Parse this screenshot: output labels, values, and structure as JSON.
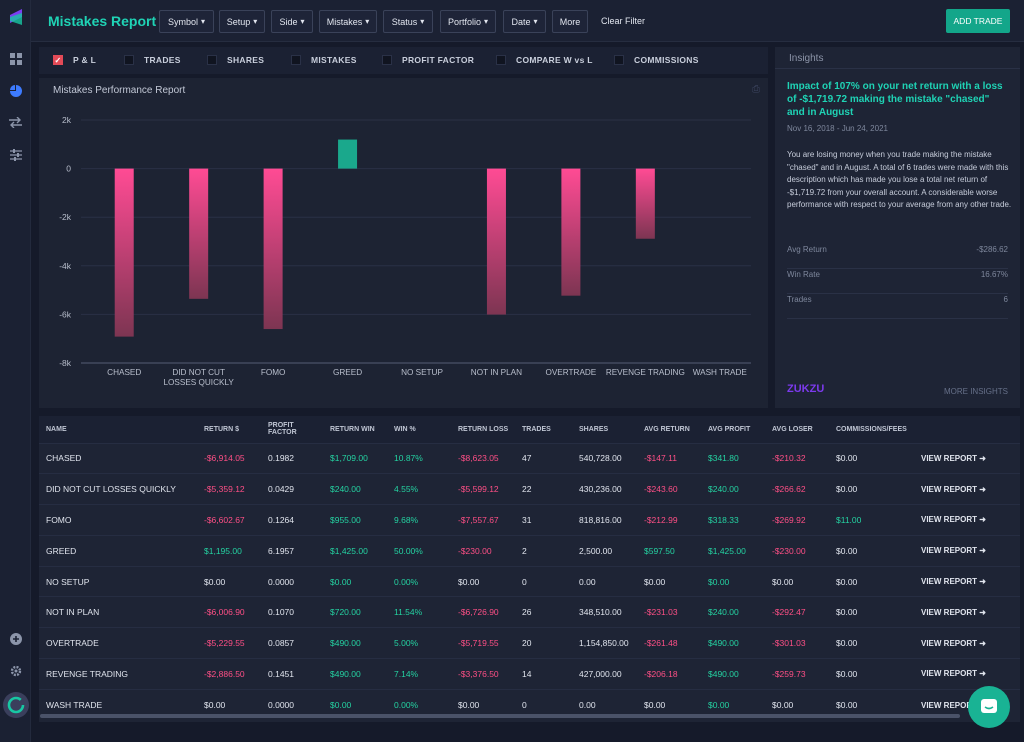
{
  "header": {
    "title": "Mistakes Report",
    "filters": [
      "Symbol",
      "Setup",
      "Side",
      "Mistakes",
      "Status",
      "Portfolio",
      "Date"
    ],
    "more": "More",
    "clear": "Clear Filter",
    "add_trade": "ADD TRADE"
  },
  "sidebar": {
    "icons": [
      "dashboard-icon",
      "pie-chart-icon",
      "transfer-icon",
      "sliders-icon",
      "add-circle-icon",
      "settings-icon",
      "profile-ring-icon"
    ]
  },
  "metrics": [
    {
      "label": "P & L",
      "checked": true
    },
    {
      "label": "TRADES",
      "checked": false
    },
    {
      "label": "SHARES",
      "checked": false
    },
    {
      "label": "MISTAKES",
      "checked": false
    },
    {
      "label": "PROFIT FACTOR",
      "checked": false
    },
    {
      "label": "COMPARE W vs L",
      "checked": false
    },
    {
      "label": "COMMISSIONS",
      "checked": false
    }
  ],
  "chart_data": {
    "type": "bar",
    "title": "Mistakes Performance Report",
    "categories": [
      "CHASED",
      "DID NOT CUT LOSSES QUICKLY",
      "FOMO",
      "GREED",
      "NO SETUP",
      "NOT IN PLAN",
      "OVERTRADE",
      "REVENGE TRADING",
      "WASH TRADE"
    ],
    "category_lines": [
      [
        "CHASED"
      ],
      [
        "DID NOT CUT",
        "LOSSES QUICKLY"
      ],
      [
        "FOMO"
      ],
      [
        "GREED"
      ],
      [
        "NO SETUP"
      ],
      [
        "NOT IN PLAN"
      ],
      [
        "OVERTRADE"
      ],
      [
        "REVENGE TRADING"
      ],
      [
        "WASH TRADE"
      ]
    ],
    "values": [
      -6914.05,
      -5359.12,
      -6602.67,
      1195.0,
      0,
      -6006.9,
      -5229.55,
      -2886.5,
      0
    ],
    "ylim": [
      -8000,
      2000
    ],
    "yticks": [
      2000,
      0,
      -2000,
      -4000,
      -6000,
      -8000
    ],
    "ytick_labels": [
      "2k",
      "0",
      "-2k",
      "-4k",
      "-6k",
      "-8k"
    ],
    "grid": true,
    "colors": {
      "negative_top": "#ff4b94",
      "negative_bottom": "#7d3552",
      "positive": "#1aa88c"
    }
  },
  "insights": {
    "title": "Insights",
    "headline": "Impact of 107% on your net return with a loss of -$1,719.72 making the mistake \"chased\" and in August",
    "date": "Nov 16, 2018 - Jun 24, 2021",
    "body": "You are losing money when you trade making the mistake \"chased\" and in August. A total of 6 trades were made with this description which has made you lose a total net return of -$1,719.72 from your overall account. A considerable worse performance with respect to your average from any other trade.",
    "stats": [
      {
        "label": "Avg Return",
        "value": "-$286.62"
      },
      {
        "label": "Win Rate",
        "value": "16.67%"
      },
      {
        "label": "Trades",
        "value": "6"
      }
    ],
    "logo": "ZUKZU",
    "more": "MORE INSIGHTS"
  },
  "table": {
    "columns": [
      "NAME",
      "RETURN $",
      "PROFIT FACTOR",
      "RETURN WIN",
      "WIN %",
      "RETURN LOSS",
      "TRADES",
      "SHARES",
      "AVG RETURN",
      "AVG PROFIT",
      "AVG LOSER",
      "COMMISSIONS/FEES",
      ""
    ],
    "view_label": "VIEW REPORT",
    "rows": [
      [
        "CHASED",
        "-$6,914.05",
        "0.1982",
        "$1,709.00",
        "10.87%",
        "-$8,623.05",
        "47",
        "540,728.00",
        "-$147.11",
        "$341.80",
        "-$210.32",
        "$0.00"
      ],
      [
        "DID NOT CUT LOSSES QUICKLY",
        "-$5,359.12",
        "0.0429",
        "$240.00",
        "4.55%",
        "-$5,599.12",
        "22",
        "430,236.00",
        "-$243.60",
        "$240.00",
        "-$266.62",
        "$0.00"
      ],
      [
        "FOMO",
        "-$6,602.67",
        "0.1264",
        "$955.00",
        "9.68%",
        "-$7,557.67",
        "31",
        "818,816.00",
        "-$212.99",
        "$318.33",
        "-$269.92",
        "$11.00"
      ],
      [
        "GREED",
        "$1,195.00",
        "6.1957",
        "$1,425.00",
        "50.00%",
        "-$230.00",
        "2",
        "2,500.00",
        "$597.50",
        "$1,425.00",
        "-$230.00",
        "$0.00"
      ],
      [
        "NO SETUP",
        "$0.00",
        "0.0000",
        "$0.00",
        "0.00%",
        "$0.00",
        "0",
        "0.00",
        "$0.00",
        "$0.00",
        "$0.00",
        "$0.00"
      ],
      [
        "NOT IN PLAN",
        "-$6,006.90",
        "0.1070",
        "$720.00",
        "11.54%",
        "-$6,726.90",
        "26",
        "348,510.00",
        "-$231.03",
        "$240.00",
        "-$292.47",
        "$0.00"
      ],
      [
        "OVERTRADE",
        "-$5,229.55",
        "0.0857",
        "$490.00",
        "5.00%",
        "-$5,719.55",
        "20",
        "1,154,850.00",
        "-$261.48",
        "$490.00",
        "-$301.03",
        "$0.00"
      ],
      [
        "REVENGE TRADING",
        "-$2,886.50",
        "0.1451",
        "$490.00",
        "7.14%",
        "-$3,376.50",
        "14",
        "427,000.00",
        "-$206.18",
        "$490.00",
        "-$259.73",
        "$0.00"
      ],
      [
        "WASH TRADE",
        "$0.00",
        "0.0000",
        "$0.00",
        "0.00%",
        "$0.00",
        "0",
        "0.00",
        "$0.00",
        "$0.00",
        "$0.00",
        "$0.00"
      ]
    ]
  }
}
